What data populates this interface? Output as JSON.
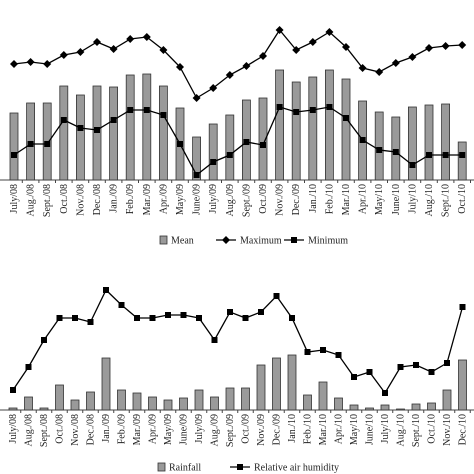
{
  "chart_data": [
    {
      "type": "bar",
      "categories": [
        "July/08",
        "Aug./08",
        "Sept./08",
        "Oct./08",
        "Nov./08",
        "Dec./08",
        "Jan./09",
        "Feb./09",
        "Mar./09",
        "Apr./09",
        "May/09",
        "June/09",
        "July/09",
        "Aug./09",
        "Sept./09",
        "Oct./09",
        "Nov./09",
        "Dec./09",
        "Jan./10",
        "Feb./10",
        "Mar./10",
        "Apr./10",
        "May/10",
        "June/10",
        "July/10",
        "Aug./10",
        "Sept./10",
        "Oct./10"
      ],
      "ylim": [
        0,
        36
      ],
      "series": [
        {
          "name": "Mean",
          "type": "bar",
          "color": "#9a9a9a",
          "values": [
            13.4,
            15.4,
            15.4,
            18.8,
            17,
            18.8,
            18.6,
            21,
            21.2,
            18.8,
            14.4,
            8.6,
            11.2,
            13,
            16,
            16.4,
            22,
            19.6,
            20.6,
            22,
            20.2,
            15.8,
            13.6,
            12.6,
            14.6,
            15,
            15.2,
            7.6
          ]
        },
        {
          "name": "Maximum",
          "type": "line",
          "marker": "diamond",
          "color": "#000000",
          "values": [
            23.2,
            23.6,
            23.2,
            25,
            25.6,
            27.6,
            26.2,
            28.2,
            28.6,
            26,
            22.6,
            16.4,
            18.4,
            21,
            22.8,
            24.8,
            30,
            26,
            27.6,
            29.6,
            26.6,
            22.4,
            21.6,
            23.4,
            24.6,
            26.4,
            26.8,
            27
          ]
        },
        {
          "name": "Minimum",
          "type": "line",
          "marker": "square",
          "color": "#000000",
          "values": [
            5,
            7.2,
            7.2,
            12,
            10.4,
            10,
            12,
            14,
            14,
            13,
            7.2,
            1,
            3.6,
            5,
            7.6,
            7,
            14.6,
            13.6,
            14,
            14.6,
            12.4,
            8,
            6,
            5.6,
            3,
            5,
            5,
            5
          ]
        }
      ]
    },
    {
      "type": "bar",
      "categories": [
        "July/08",
        "Aug./08",
        "Sept./08",
        "Oct./08",
        "Nov./08",
        "Dec./08",
        "Jan./09",
        "Feb./09",
        "Mar./09",
        "Apr./09",
        "May/09",
        "June/09",
        "July/09",
        "Aug./09",
        "Sept./09",
        "Oct./09",
        "Nov./09",
        "Dec./09",
        "Jan./10",
        "Feb./10",
        "Mar./10",
        "Apr./10",
        "May/10",
        "June/10",
        "July/10",
        "Aug./10",
        "Sept./10",
        "Oct./10",
        "Nov./10",
        "Dec./10"
      ],
      "ylim": [
        0,
        125
      ],
      "series": [
        {
          "name": "Rainfall",
          "type": "bar",
          "color": "#9a9a9a",
          "values": [
            2,
            13,
            2,
            25,
            10,
            18,
            52,
            20,
            17,
            13,
            10,
            12,
            20,
            13,
            22,
            22,
            45,
            52,
            55,
            15,
            28,
            12,
            5,
            2,
            5,
            1,
            6,
            7,
            20,
            50
          ]
        },
        {
          "name": "Relative air humidity",
          "type": "line",
          "marker": "square",
          "color": "#000000",
          "values": [
            20,
            43,
            70,
            92,
            92,
            88,
            120,
            105,
            92,
            92,
            95,
            95,
            92,
            70,
            98,
            92,
            98,
            114,
            92,
            58,
            60,
            55,
            33,
            38,
            17,
            43,
            45,
            38,
            47,
            103
          ]
        }
      ]
    }
  ]
}
